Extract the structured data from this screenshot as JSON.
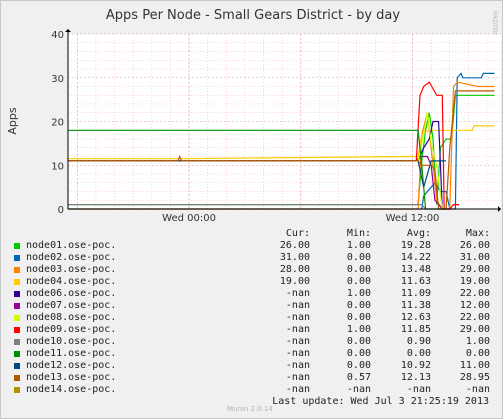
{
  "chart_data": {
    "type": "line",
    "title": "Apps Per Node - Small Gears District - by day",
    "ylabel": "Apps",
    "ylim": [
      0,
      40
    ],
    "yticks": [
      "0",
      "10",
      "20",
      "30",
      "40"
    ],
    "xlim": [
      -6.5,
      16.75
    ],
    "xticks": [
      {
        "h": 0,
        "label": "Wed 00:00"
      },
      {
        "h": 12,
        "label": "Wed 12:00"
      }
    ],
    "side_label": "RRDTOOL / TOBI OETIKER",
    "series": [
      {
        "name": "node01.ose-poc.",
        "color": "#00cc00",
        "points": [
          [
            -6.5,
            1
          ],
          [
            12.3,
            1
          ],
          [
            12.5,
            11
          ],
          [
            12.7,
            18
          ],
          [
            12.9,
            22
          ],
          [
            13.1,
            16
          ],
          [
            13.3,
            1
          ],
          [
            13.5,
            14
          ],
          [
            13.8,
            16
          ],
          [
            14.1,
            16
          ],
          [
            14.3,
            26
          ],
          [
            16.4,
            26
          ]
        ]
      },
      {
        "name": "node02.ose-poc.",
        "color": "#0066b3",
        "points": [
          [
            -6.5,
            0
          ],
          [
            12.5,
            0
          ],
          [
            12.6,
            3
          ],
          [
            13.2,
            6
          ],
          [
            13.5,
            4
          ],
          [
            13.8,
            4
          ],
          [
            14.0,
            0
          ],
          [
            14.3,
            0
          ],
          [
            14.4,
            30
          ],
          [
            14.6,
            31
          ],
          [
            14.7,
            30
          ],
          [
            15.7,
            30
          ],
          [
            15.8,
            31
          ],
          [
            16.4,
            31
          ]
        ]
      },
      {
        "name": "node03.ose-poc.",
        "color": "#ff8000",
        "points": [
          [
            -6.5,
            0
          ],
          [
            12.3,
            0
          ],
          [
            12.5,
            17
          ],
          [
            12.8,
            22
          ],
          [
            13.1,
            10
          ],
          [
            13.3,
            2
          ],
          [
            13.6,
            0
          ],
          [
            14.0,
            0
          ],
          [
            14.2,
            28
          ],
          [
            14.4,
            29
          ],
          [
            15.5,
            28
          ],
          [
            16.4,
            28
          ]
        ]
      },
      {
        "name": "node04.ose-poc.",
        "color": "#ffcc00",
        "points": [
          [
            -6.5,
            11.5
          ],
          [
            -0.5,
            11.5
          ],
          [
            11.8,
            12
          ],
          [
            12.3,
            12
          ],
          [
            12.5,
            17
          ],
          [
            12.9,
            18
          ],
          [
            15.2,
            18
          ],
          [
            15.3,
            19
          ],
          [
            16.4,
            19
          ]
        ]
      },
      {
        "name": "node06.ose-poc.",
        "color": "#330099",
        "points": [
          [
            -6.5,
            11
          ],
          [
            12.3,
            11
          ],
          [
            12.6,
            14
          ],
          [
            12.9,
            16
          ],
          [
            13.1,
            20
          ],
          [
            13.4,
            20
          ],
          [
            13.6,
            0
          ],
          [
            14.0,
            0
          ]
        ]
      },
      {
        "name": "node07.ose-poc.",
        "color": "#990099",
        "points": [
          [
            -6.5,
            11
          ],
          [
            12.2,
            11
          ],
          [
            12.4,
            12
          ],
          [
            12.8,
            12
          ],
          [
            13.0,
            10
          ],
          [
            13.2,
            2
          ],
          [
            13.6,
            0
          ]
        ]
      },
      {
        "name": "node08.ose-poc.",
        "color": "#ccff00",
        "points": [
          [
            -6.5,
            11
          ],
          [
            12.3,
            11
          ],
          [
            12.5,
            15
          ],
          [
            12.8,
            22
          ],
          [
            13.0,
            15
          ],
          [
            13.3,
            10
          ],
          [
            13.6,
            0
          ]
        ]
      },
      {
        "name": "node09.ose-poc.",
        "color": "#ff0000",
        "points": [
          [
            -6.5,
            11
          ],
          [
            12.2,
            11
          ],
          [
            12.4,
            26
          ],
          [
            12.6,
            28
          ],
          [
            12.9,
            29
          ],
          [
            13.3,
            26
          ],
          [
            13.6,
            26
          ],
          [
            13.7,
            0
          ],
          [
            14.0,
            0
          ],
          [
            14.2,
            1
          ],
          [
            14.5,
            1
          ]
        ]
      },
      {
        "name": "node10.ose-poc.",
        "color": "#808080",
        "points": [
          [
            -6.5,
            1
          ],
          [
            12.3,
            1
          ],
          [
            12.5,
            1
          ],
          [
            12.7,
            0
          ],
          [
            13.8,
            0
          ]
        ]
      },
      {
        "name": "node11.ose-poc.",
        "color": "#008f00",
        "points": [
          [
            -6.5,
            18
          ],
          [
            12.3,
            18
          ],
          [
            12.5,
            10
          ],
          [
            12.7,
            0
          ],
          [
            13.8,
            0
          ]
        ]
      },
      {
        "name": "node12.ose-poc.",
        "color": "#00487d",
        "points": [
          [
            -6.5,
            11
          ],
          [
            12.3,
            11
          ],
          [
            12.6,
            5
          ],
          [
            13.0,
            11
          ],
          [
            13.8,
            11
          ]
        ]
      },
      {
        "name": "node13.ose-poc.",
        "color": "#b35a00",
        "points": [
          [
            -6.5,
            11
          ],
          [
            -0.6,
            11
          ],
          [
            -0.5,
            12
          ],
          [
            -0.4,
            11
          ],
          [
            12.3,
            11
          ],
          [
            12.5,
            10
          ],
          [
            13.0,
            10
          ],
          [
            13.2,
            9
          ],
          [
            13.4,
            0
          ],
          [
            13.8,
            0
          ],
          [
            14.0,
            14
          ],
          [
            14.3,
            27
          ],
          [
            16.4,
            27
          ]
        ]
      }
    ]
  },
  "legend": {
    "headers": {
      "cur": "Cur:",
      "min": "Min:",
      "avg": "Avg:",
      "max": "Max:"
    },
    "rows": [
      {
        "name": "node01.ose-poc.",
        "color": "#00cc00",
        "cur": "26.00",
        "min": "1.00",
        "avg": "19.28",
        "max": "26.00"
      },
      {
        "name": "node02.ose-poc.",
        "color": "#0066b3",
        "cur": "31.00",
        "min": "0.00",
        "avg": "14.22",
        "max": "31.00"
      },
      {
        "name": "node03.ose-poc.",
        "color": "#ff8000",
        "cur": "28.00",
        "min": "0.00",
        "avg": "13.48",
        "max": "29.00"
      },
      {
        "name": "node04.ose-poc.",
        "color": "#ffcc00",
        "cur": "19.00",
        "min": "0.00",
        "avg": "11.63",
        "max": "19.00"
      },
      {
        "name": "node06.ose-poc.",
        "color": "#330099",
        "cur": "-nan",
        "min": "1.00",
        "avg": "11.09",
        "max": "22.00"
      },
      {
        "name": "node07.ose-poc.",
        "color": "#990099",
        "cur": "-nan",
        "min": "0.00",
        "avg": "11.38",
        "max": "12.00"
      },
      {
        "name": "node08.ose-poc.",
        "color": "#ccff00",
        "cur": "-nan",
        "min": "0.00",
        "avg": "12.63",
        "max": "22.00"
      },
      {
        "name": "node09.ose-poc.",
        "color": "#ff0000",
        "cur": "-nan",
        "min": "1.00",
        "avg": "11.85",
        "max": "29.00"
      },
      {
        "name": "node10.ose-poc.",
        "color": "#808080",
        "cur": "-nan",
        "min": "0.00",
        "avg": "0.90",
        "max": "1.00"
      },
      {
        "name": "node11.ose-poc.",
        "color": "#008f00",
        "cur": "-nan",
        "min": "0.00",
        "avg": "0.00",
        "max": "0.00"
      },
      {
        "name": "node12.ose-poc.",
        "color": "#00487d",
        "cur": "-nan",
        "min": "0.00",
        "avg": "10.92",
        "max": "11.00"
      },
      {
        "name": "node13.ose-poc.",
        "color": "#b35a00",
        "cur": "-nan",
        "min": "0.57",
        "avg": "12.13",
        "max": "28.95"
      },
      {
        "name": "node14.ose-poc.",
        "color": "#b38f00",
        "cur": "-nan",
        "min": "-nan",
        "avg": "-nan",
        "max": "-nan"
      }
    ]
  },
  "footer": {
    "munin": "Munin 2.0.14",
    "last_update": "Last update:  Wed Jul  3 21:25:19 2013"
  }
}
